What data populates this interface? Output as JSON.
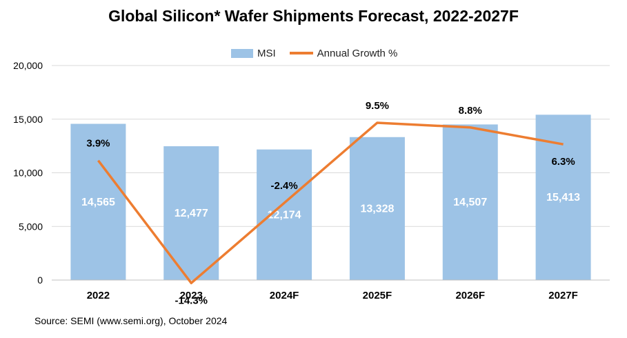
{
  "title": "Global Silicon* Wafer Shipments Forecast, 2022-2027F",
  "legend": {
    "bar_label": "MSI",
    "line_label": "Annual Growth %"
  },
  "source": "Source: SEMI (www.semi.org), October 2024",
  "colors": {
    "bar": "#9DC3E6",
    "line": "#ED7D31",
    "grid": "#D9D9D9",
    "bar_label": "#ffffff"
  },
  "chart_data": {
    "type": "bar",
    "title": "Global Silicon* Wafer Shipments Forecast, 2022-2027F",
    "categories": [
      "2022",
      "2023",
      "2024F",
      "2025F",
      "2026F",
      "2027F"
    ],
    "ylim": [
      0,
      20000
    ],
    "yticks": [
      0,
      5000,
      10000,
      15000,
      20000
    ],
    "ytick_labels": [
      "0",
      "5,000",
      "10,000",
      "15,000",
      "20,000"
    ],
    "grid": true,
    "legend_position": "top",
    "series": [
      {
        "name": "MSI",
        "type": "bar",
        "values": [
          14565,
          12477,
          12174,
          13328,
          14507,
          15413
        ],
        "labels": [
          "14,565",
          "12,477",
          "12,174",
          "13,328",
          "14,507",
          "15,413"
        ]
      },
      {
        "name": "Annual Growth %",
        "type": "line",
        "values": [
          3.9,
          -14.3,
          -2.4,
          9.5,
          8.8,
          6.3
        ],
        "labels": [
          "3.9%",
          "-14.3%",
          "-2.4%",
          "9.5%",
          "8.8%",
          "6.3%"
        ]
      }
    ]
  }
}
